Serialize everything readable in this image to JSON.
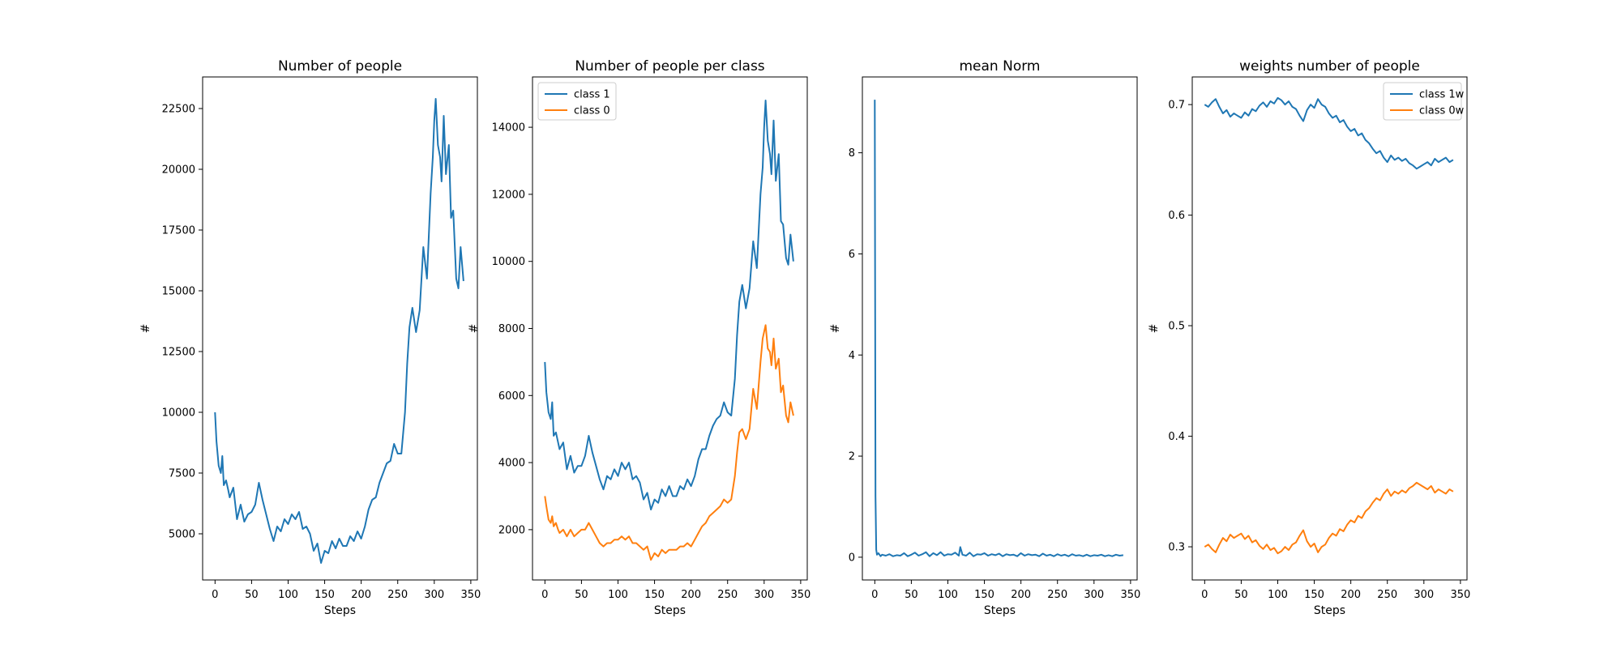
{
  "colors": {
    "class1": "#1f77b4",
    "class0": "#ff7f0e",
    "axis": "#000000",
    "background": "#ffffff"
  },
  "chart_data": [
    {
      "type": "line",
      "title": "Number of people",
      "xlabel": "Steps",
      "ylabel": "#",
      "xlim": [
        -17,
        359
      ],
      "ylim": [
        3100,
        23800
      ],
      "xticks": [
        0,
        50,
        100,
        150,
        200,
        250,
        300,
        350
      ],
      "yticks": [
        5000,
        7500,
        10000,
        12500,
        15000,
        17500,
        20000,
        22500
      ],
      "legend": null,
      "series": [
        {
          "color_key": "class1",
          "x": [
            0,
            2,
            5,
            8,
            10,
            12,
            15,
            18,
            20,
            25,
            30,
            35,
            40,
            45,
            50,
            55,
            60,
            65,
            70,
            75,
            80,
            85,
            90,
            95,
            100,
            105,
            110,
            115,
            120,
            125,
            130,
            135,
            140,
            145,
            150,
            155,
            160,
            165,
            170,
            175,
            180,
            185,
            190,
            195,
            200,
            205,
            210,
            215,
            220,
            225,
            230,
            235,
            240,
            245,
            250,
            255,
            260,
            263,
            266,
            270,
            275,
            280,
            285,
            290,
            295,
            298,
            300,
            302,
            305,
            308,
            310,
            313,
            316,
            320,
            323,
            326,
            330,
            333,
            336,
            340
          ],
          "y": [
            10000,
            8800,
            7800,
            7500,
            8200,
            7000,
            7200,
            6800,
            6500,
            6900,
            5600,
            6200,
            5500,
            5800,
            5900,
            6200,
            7100,
            6400,
            5800,
            5200,
            4700,
            5300,
            5100,
            5600,
            5400,
            5800,
            5600,
            5900,
            5200,
            5300,
            5000,
            4300,
            4600,
            3800,
            4300,
            4200,
            4700,
            4400,
            4800,
            4500,
            4500,
            4900,
            4700,
            5100,
            4800,
            5300,
            6000,
            6400,
            6500,
            7100,
            7500,
            7900,
            8000,
            8700,
            8300,
            8300,
            10000,
            12000,
            13500,
            14300,
            13300,
            14200,
            16800,
            15500,
            19000,
            20500,
            22000,
            22900,
            21000,
            20500,
            19500,
            22200,
            19800,
            21000,
            18000,
            18300,
            15500,
            15100,
            16800,
            15400
          ]
        }
      ]
    },
    {
      "type": "line",
      "title": "Number of people per class",
      "xlabel": "Steps",
      "ylabel": "#",
      "xlim": [
        -17,
        359
      ],
      "ylim": [
        500,
        15500
      ],
      "xticks": [
        0,
        50,
        100,
        150,
        200,
        250,
        300,
        350
      ],
      "yticks": [
        2000,
        4000,
        6000,
        8000,
        10000,
        12000,
        14000
      ],
      "legend": "top-left",
      "series": [
        {
          "name": "class 1",
          "color_key": "class1",
          "x": [
            0,
            2,
            5,
            8,
            10,
            12,
            15,
            18,
            20,
            25,
            30,
            35,
            40,
            45,
            50,
            55,
            60,
            65,
            70,
            75,
            80,
            85,
            90,
            95,
            100,
            105,
            110,
            115,
            120,
            125,
            130,
            135,
            140,
            145,
            150,
            155,
            160,
            165,
            170,
            175,
            180,
            185,
            190,
            195,
            200,
            205,
            210,
            215,
            220,
            225,
            230,
            235,
            240,
            245,
            250,
            255,
            260,
            263,
            266,
            270,
            275,
            280,
            285,
            290,
            295,
            298,
            300,
            302,
            305,
            308,
            310,
            313,
            316,
            320,
            323,
            326,
            330,
            333,
            336,
            340
          ],
          "y": [
            7000,
            6100,
            5500,
            5300,
            5800,
            4800,
            4900,
            4600,
            4400,
            4600,
            3800,
            4200,
            3700,
            3900,
            3900,
            4200,
            4800,
            4300,
            3900,
            3500,
            3200,
            3600,
            3500,
            3800,
            3600,
            4000,
            3800,
            4000,
            3500,
            3600,
            3400,
            2900,
            3100,
            2600,
            2900,
            2800,
            3200,
            3000,
            3300,
            3000,
            3000,
            3300,
            3200,
            3500,
            3300,
            3600,
            4100,
            4400,
            4400,
            4800,
            5100,
            5300,
            5400,
            5800,
            5500,
            5400,
            6500,
            7800,
            8800,
            9300,
            8600,
            9200,
            10600,
            9800,
            12000,
            12800,
            14000,
            14800,
            13600,
            13200,
            12600,
            14200,
            12400,
            13200,
            11200,
            11100,
            10100,
            9900,
            10800,
            10000
          ]
        },
        {
          "name": "class 0",
          "color_key": "class0",
          "x": [
            0,
            2,
            5,
            8,
            10,
            12,
            15,
            18,
            20,
            25,
            30,
            35,
            40,
            45,
            50,
            55,
            60,
            65,
            70,
            75,
            80,
            85,
            90,
            95,
            100,
            105,
            110,
            115,
            120,
            125,
            130,
            135,
            140,
            145,
            150,
            155,
            160,
            165,
            170,
            175,
            180,
            185,
            190,
            195,
            200,
            205,
            210,
            215,
            220,
            225,
            230,
            235,
            240,
            245,
            250,
            255,
            260,
            263,
            266,
            270,
            275,
            280,
            285,
            290,
            295,
            298,
            300,
            302,
            305,
            308,
            310,
            313,
            316,
            320,
            323,
            326,
            330,
            333,
            336,
            340
          ],
          "y": [
            3000,
            2700,
            2300,
            2200,
            2400,
            2100,
            2200,
            2000,
            1900,
            2000,
            1800,
            2000,
            1800,
            1900,
            2000,
            2000,
            2200,
            2000,
            1800,
            1600,
            1500,
            1600,
            1600,
            1700,
            1700,
            1800,
            1700,
            1800,
            1600,
            1600,
            1500,
            1400,
            1500,
            1100,
            1300,
            1200,
            1400,
            1300,
            1400,
            1400,
            1400,
            1500,
            1500,
            1600,
            1500,
            1700,
            1900,
            2100,
            2200,
            2400,
            2500,
            2600,
            2700,
            2900,
            2800,
            2900,
            3600,
            4300,
            4900,
            5000,
            4700,
            5000,
            6200,
            5600,
            7000,
            7700,
            7900,
            8100,
            7400,
            7300,
            6900,
            7700,
            6800,
            7100,
            6100,
            6300,
            5400,
            5200,
            5800,
            5400
          ]
        }
      ]
    },
    {
      "type": "line",
      "title": "mean Norm",
      "xlabel": "Steps",
      "ylabel": "#",
      "xlim": [
        -17,
        359
      ],
      "ylim": [
        -0.45,
        9.5
      ],
      "xticks": [
        0,
        50,
        100,
        150,
        200,
        250,
        300,
        350
      ],
      "yticks": [
        0,
        2,
        4,
        6,
        8
      ],
      "legend": null,
      "series": [
        {
          "color_key": "class1",
          "x": [
            0,
            1,
            2,
            3,
            5,
            8,
            10,
            15,
            20,
            25,
            30,
            35,
            40,
            45,
            50,
            55,
            60,
            65,
            70,
            75,
            80,
            85,
            90,
            95,
            100,
            105,
            110,
            115,
            117,
            120,
            125,
            130,
            135,
            140,
            145,
            150,
            155,
            160,
            165,
            170,
            175,
            180,
            185,
            190,
            195,
            200,
            205,
            210,
            215,
            220,
            225,
            230,
            235,
            240,
            245,
            250,
            255,
            260,
            265,
            270,
            275,
            280,
            285,
            290,
            295,
            300,
            305,
            310,
            315,
            320,
            325,
            330,
            335,
            340
          ],
          "y": [
            9.05,
            1.2,
            0.15,
            0.05,
            0.08,
            0.02,
            0.05,
            0.03,
            0.06,
            0.02,
            0.04,
            0.03,
            0.08,
            0.02,
            0.05,
            0.09,
            0.03,
            0.06,
            0.1,
            0.02,
            0.08,
            0.04,
            0.1,
            0.03,
            0.06,
            0.05,
            0.09,
            0.03,
            0.2,
            0.05,
            0.03,
            0.09,
            0.02,
            0.06,
            0.05,
            0.08,
            0.03,
            0.06,
            0.04,
            0.07,
            0.02,
            0.06,
            0.04,
            0.05,
            0.02,
            0.08,
            0.03,
            0.06,
            0.04,
            0.05,
            0.02,
            0.07,
            0.03,
            0.05,
            0.02,
            0.06,
            0.03,
            0.05,
            0.02,
            0.06,
            0.03,
            0.04,
            0.02,
            0.05,
            0.02,
            0.04,
            0.03,
            0.05,
            0.02,
            0.04,
            0.02,
            0.05,
            0.03,
            0.04
          ]
        }
      ]
    },
    {
      "type": "line",
      "title": "weights number of people",
      "xlabel": "Steps",
      "ylabel": "#",
      "xlim": [
        -17,
        359
      ],
      "ylim": [
        0.27,
        0.725
      ],
      "xticks": [
        0,
        50,
        100,
        150,
        200,
        250,
        300,
        350
      ],
      "yticks": [
        0.3,
        0.4,
        0.5,
        0.6,
        0.7
      ],
      "legend": "top-right",
      "series": [
        {
          "name": "class 1w",
          "color_key": "class1",
          "x": [
            0,
            5,
            10,
            15,
            20,
            25,
            30,
            35,
            40,
            45,
            50,
            55,
            60,
            65,
            70,
            75,
            80,
            85,
            90,
            95,
            100,
            105,
            110,
            115,
            120,
            125,
            130,
            135,
            140,
            145,
            150,
            155,
            160,
            165,
            170,
            175,
            180,
            185,
            190,
            195,
            200,
            205,
            210,
            215,
            220,
            225,
            230,
            235,
            240,
            245,
            250,
            255,
            260,
            265,
            270,
            275,
            280,
            285,
            290,
            295,
            300,
            305,
            310,
            315,
            320,
            325,
            330,
            335,
            340
          ],
          "y": [
            0.7,
            0.698,
            0.702,
            0.705,
            0.698,
            0.692,
            0.695,
            0.689,
            0.692,
            0.69,
            0.688,
            0.693,
            0.69,
            0.696,
            0.694,
            0.699,
            0.702,
            0.698,
            0.703,
            0.701,
            0.706,
            0.704,
            0.7,
            0.703,
            0.698,
            0.696,
            0.69,
            0.685,
            0.695,
            0.7,
            0.697,
            0.705,
            0.7,
            0.698,
            0.692,
            0.688,
            0.69,
            0.684,
            0.686,
            0.68,
            0.676,
            0.678,
            0.672,
            0.674,
            0.668,
            0.665,
            0.66,
            0.656,
            0.658,
            0.652,
            0.648,
            0.654,
            0.65,
            0.652,
            0.649,
            0.651,
            0.647,
            0.645,
            0.642,
            0.644,
            0.646,
            0.648,
            0.645,
            0.651,
            0.648,
            0.65,
            0.652,
            0.648,
            0.65
          ]
        },
        {
          "name": "class 0w",
          "color_key": "class0",
          "x": [
            0,
            5,
            10,
            15,
            20,
            25,
            30,
            35,
            40,
            45,
            50,
            55,
            60,
            65,
            70,
            75,
            80,
            85,
            90,
            95,
            100,
            105,
            110,
            115,
            120,
            125,
            130,
            135,
            140,
            145,
            150,
            155,
            160,
            165,
            170,
            175,
            180,
            185,
            190,
            195,
            200,
            205,
            210,
            215,
            220,
            225,
            230,
            235,
            240,
            245,
            250,
            255,
            260,
            265,
            270,
            275,
            280,
            285,
            290,
            295,
            300,
            305,
            310,
            315,
            320,
            325,
            330,
            335,
            340
          ],
          "y": [
            0.3,
            0.302,
            0.298,
            0.295,
            0.302,
            0.308,
            0.305,
            0.311,
            0.308,
            0.31,
            0.312,
            0.307,
            0.31,
            0.304,
            0.306,
            0.301,
            0.298,
            0.302,
            0.297,
            0.299,
            0.294,
            0.296,
            0.3,
            0.297,
            0.302,
            0.304,
            0.31,
            0.315,
            0.305,
            0.3,
            0.303,
            0.295,
            0.3,
            0.302,
            0.308,
            0.312,
            0.31,
            0.316,
            0.314,
            0.32,
            0.324,
            0.322,
            0.328,
            0.326,
            0.332,
            0.335,
            0.34,
            0.344,
            0.342,
            0.348,
            0.352,
            0.346,
            0.35,
            0.348,
            0.351,
            0.349,
            0.353,
            0.355,
            0.358,
            0.356,
            0.354,
            0.352,
            0.355,
            0.349,
            0.352,
            0.35,
            0.348,
            0.352,
            0.35
          ]
        }
      ]
    }
  ]
}
